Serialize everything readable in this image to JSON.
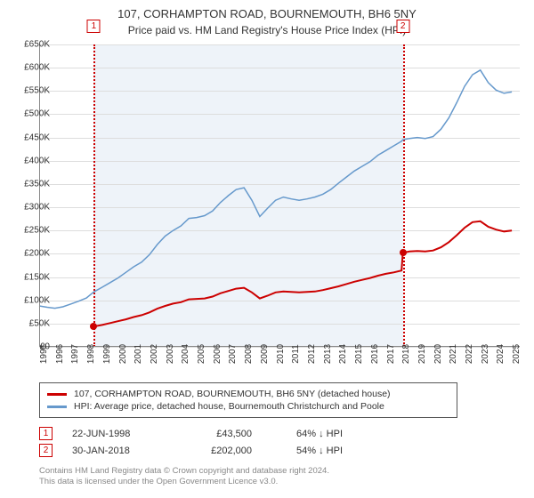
{
  "title": "107, CORHAMPTON ROAD, BOURNEMOUTH, BH6 5NY",
  "subtitle": "Price paid vs. HM Land Registry's House Price Index (HPI)",
  "chart": {
    "type": "line",
    "background_color": "#ffffff",
    "shaded_color": "#eef3f9",
    "grid_color": "#dddddd",
    "axis_color": "#888888",
    "label_fontsize": 10,
    "ylim": [
      0,
      650
    ],
    "ytick_step": 50,
    "yticks": [
      "£0",
      "£50K",
      "£100K",
      "£150K",
      "£200K",
      "£250K",
      "£300K",
      "£350K",
      "£400K",
      "£450K",
      "£500K",
      "£550K",
      "£600K",
      "£650K"
    ],
    "xlim": [
      1995,
      2025.5
    ],
    "xticks": [
      1995,
      1996,
      1997,
      1998,
      1999,
      2000,
      2001,
      2002,
      2003,
      2004,
      2005,
      2006,
      2007,
      2008,
      2009,
      2010,
      2011,
      2012,
      2013,
      2014,
      2015,
      2016,
      2017,
      2018,
      2019,
      2020,
      2021,
      2022,
      2023,
      2024,
      2025
    ],
    "shaded_start": 1998.47,
    "shaded_end": 2018.08,
    "vline_color": "#cc0000",
    "series": [
      {
        "name": "HPI: Average price, detached house, Bournemouth Christchurch and Poole",
        "color": "#6699cc",
        "line_width": 1.5,
        "data": [
          [
            1995.0,
            88
          ],
          [
            1995.5,
            85
          ],
          [
            1996.0,
            83
          ],
          [
            1996.5,
            86
          ],
          [
            1997.0,
            92
          ],
          [
            1997.5,
            98
          ],
          [
            1998.0,
            105
          ],
          [
            1998.47,
            118
          ],
          [
            1999.0,
            128
          ],
          [
            1999.5,
            138
          ],
          [
            2000.0,
            148
          ],
          [
            2000.5,
            160
          ],
          [
            2001.0,
            172
          ],
          [
            2001.5,
            182
          ],
          [
            2002.0,
            198
          ],
          [
            2002.5,
            220
          ],
          [
            2003.0,
            238
          ],
          [
            2003.5,
            250
          ],
          [
            2004.0,
            260
          ],
          [
            2004.5,
            276
          ],
          [
            2005.0,
            278
          ],
          [
            2005.5,
            282
          ],
          [
            2006.0,
            292
          ],
          [
            2006.5,
            310
          ],
          [
            2007.0,
            325
          ],
          [
            2007.5,
            338
          ],
          [
            2008.0,
            342
          ],
          [
            2008.5,
            315
          ],
          [
            2009.0,
            280
          ],
          [
            2009.5,
            298
          ],
          [
            2010.0,
            315
          ],
          [
            2010.5,
            322
          ],
          [
            2011.0,
            318
          ],
          [
            2011.5,
            315
          ],
          [
            2012.0,
            318
          ],
          [
            2012.5,
            322
          ],
          [
            2013.0,
            328
          ],
          [
            2013.5,
            338
          ],
          [
            2014.0,
            352
          ],
          [
            2014.5,
            365
          ],
          [
            2015.0,
            378
          ],
          [
            2015.5,
            388
          ],
          [
            2016.0,
            398
          ],
          [
            2016.5,
            412
          ],
          [
            2017.0,
            422
          ],
          [
            2017.5,
            432
          ],
          [
            2018.0,
            442
          ],
          [
            2018.08,
            445
          ],
          [
            2018.5,
            448
          ],
          [
            2019.0,
            450
          ],
          [
            2019.5,
            448
          ],
          [
            2020.0,
            452
          ],
          [
            2020.5,
            468
          ],
          [
            2021.0,
            492
          ],
          [
            2021.5,
            525
          ],
          [
            2022.0,
            560
          ],
          [
            2022.5,
            585
          ],
          [
            2023.0,
            595
          ],
          [
            2023.5,
            568
          ],
          [
            2024.0,
            552
          ],
          [
            2024.5,
            545
          ],
          [
            2025.0,
            548
          ]
        ]
      },
      {
        "name": "107, CORHAMPTON ROAD, BOURNEMOUTH, BH6 5NY (detached house)",
        "color": "#cc0000",
        "line_width": 2,
        "data": [
          [
            1998.47,
            43.5
          ],
          [
            1999.0,
            47
          ],
          [
            1999.5,
            51
          ],
          [
            2000.0,
            55
          ],
          [
            2000.5,
            59
          ],
          [
            2001.0,
            64
          ],
          [
            2001.5,
            68
          ],
          [
            2002.0,
            74
          ],
          [
            2002.5,
            82
          ],
          [
            2003.0,
            88
          ],
          [
            2003.5,
            93
          ],
          [
            2004.0,
            96
          ],
          [
            2004.5,
            102
          ],
          [
            2005.0,
            103
          ],
          [
            2005.5,
            104
          ],
          [
            2006.0,
            108
          ],
          [
            2006.5,
            115
          ],
          [
            2007.0,
            120
          ],
          [
            2007.5,
            125
          ],
          [
            2008.0,
            127
          ],
          [
            2008.5,
            117
          ],
          [
            2009.0,
            104
          ],
          [
            2009.5,
            110
          ],
          [
            2010.0,
            117
          ],
          [
            2010.5,
            119
          ],
          [
            2011.0,
            118
          ],
          [
            2011.5,
            117
          ],
          [
            2012.0,
            118
          ],
          [
            2012.5,
            119
          ],
          [
            2013.0,
            122
          ],
          [
            2013.5,
            126
          ],
          [
            2014.0,
            130
          ],
          [
            2014.5,
            135
          ],
          [
            2015.0,
            140
          ],
          [
            2015.5,
            144
          ],
          [
            2016.0,
            148
          ],
          [
            2016.5,
            153
          ],
          [
            2017.0,
            157
          ],
          [
            2017.5,
            160
          ],
          [
            2018.0,
            164
          ],
          [
            2018.08,
            202
          ],
          [
            2018.5,
            205
          ],
          [
            2019.0,
            206
          ],
          [
            2019.5,
            205
          ],
          [
            2020.0,
            207
          ],
          [
            2020.5,
            214
          ],
          [
            2021.0,
            225
          ],
          [
            2021.5,
            240
          ],
          [
            2022.0,
            256
          ],
          [
            2022.5,
            268
          ],
          [
            2023.0,
            270
          ],
          [
            2023.5,
            258
          ],
          [
            2024.0,
            252
          ],
          [
            2024.5,
            248
          ],
          [
            2025.0,
            250
          ]
        ]
      }
    ],
    "markers": [
      {
        "label": "1",
        "x": 1998.47,
        "y": 43.5,
        "color": "#cc0000",
        "label_y_offset": -28
      },
      {
        "label": "2",
        "x": 2018.08,
        "y": 202,
        "color": "#cc0000",
        "label_y_offset": -28
      }
    ]
  },
  "legend": {
    "items": [
      {
        "color": "#cc0000",
        "text": "107, CORHAMPTON ROAD, BOURNEMOUTH, BH6 5NY (detached house)"
      },
      {
        "color": "#6699cc",
        "text": "HPI: Average price, detached house, Bournemouth Christchurch and Poole"
      }
    ]
  },
  "transactions": [
    {
      "num": "1",
      "date": "22-JUN-1998",
      "price": "£43,500",
      "pct": "64% ↓ HPI"
    },
    {
      "num": "2",
      "date": "30-JAN-2018",
      "price": "£202,000",
      "pct": "54% ↓ HPI"
    }
  ],
  "footer": {
    "line1": "Contains HM Land Registry data © Crown copyright and database right 2024.",
    "line2": "This data is licensed under the Open Government Licence v3.0."
  }
}
